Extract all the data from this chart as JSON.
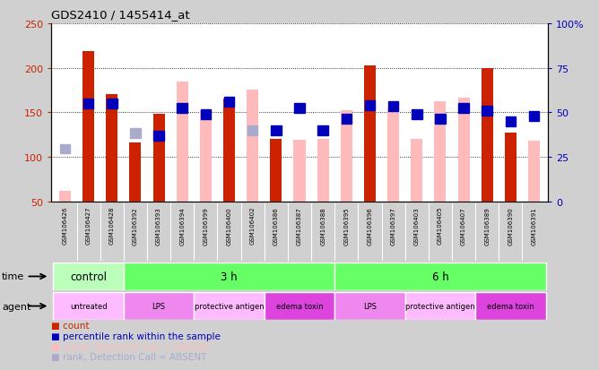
{
  "title": "GDS2410 / 1455414_at",
  "samples": [
    "GSM106426",
    "GSM106427",
    "GSM106428",
    "GSM106392",
    "GSM106393",
    "GSM106394",
    "GSM106399",
    "GSM106400",
    "GSM106402",
    "GSM106386",
    "GSM106387",
    "GSM106388",
    "GSM106395",
    "GSM106396",
    "GSM106397",
    "GSM106403",
    "GSM106405",
    "GSM106407",
    "GSM106389",
    "GSM106390",
    "GSM106391"
  ],
  "count_values": [
    62,
    219,
    170,
    116,
    148,
    184,
    152,
    165,
    175,
    120,
    119,
    120,
    152,
    203,
    152,
    120,
    162,
    166,
    200,
    127,
    118
  ],
  "count_absent": [
    true,
    false,
    false,
    false,
    false,
    true,
    true,
    false,
    true,
    false,
    true,
    true,
    true,
    false,
    true,
    true,
    true,
    true,
    false,
    false,
    true
  ],
  "rank_values": [
    109,
    160,
    160,
    127,
    124,
    155,
    148,
    162,
    130,
    130,
    155,
    130,
    143,
    158,
    157,
    148,
    143,
    155,
    152,
    140,
    146
  ],
  "rank_absent": [
    true,
    false,
    false,
    true,
    false,
    false,
    false,
    false,
    true,
    false,
    false,
    false,
    false,
    false,
    false,
    false,
    false,
    false,
    false,
    false,
    false
  ],
  "ylim_left": [
    50,
    250
  ],
  "ylim_right": [
    0,
    100
  ],
  "yticks_left": [
    50,
    100,
    150,
    200,
    250
  ],
  "yticks_right": [
    0,
    25,
    50,
    75,
    100
  ],
  "bar_color_present": "#cc2200",
  "bar_color_absent": "#ffbbbb",
  "rank_color_present": "#0000bb",
  "rank_color_absent": "#aaaacc",
  "bg_color": "#d0d0d0",
  "plot_bg": "#ffffff",
  "xticklabel_bg": "#c8c8c8",
  "time_spans": [
    {
      "start": 0,
      "end": 3,
      "label": "control",
      "color": "#bbffbb"
    },
    {
      "start": 3,
      "end": 12,
      "label": "3 h",
      "color": "#66ff66"
    },
    {
      "start": 12,
      "end": 21,
      "label": "6 h",
      "color": "#66ff66"
    }
  ],
  "agent_spans": [
    {
      "start": 0,
      "end": 3,
      "label": "untreated",
      "color": "#ffbbff"
    },
    {
      "start": 3,
      "end": 6,
      "label": "LPS",
      "color": "#ee88ee"
    },
    {
      "start": 6,
      "end": 9,
      "label": "protective antigen",
      "color": "#ffbbff"
    },
    {
      "start": 9,
      "end": 12,
      "label": "edema toxin",
      "color": "#dd44dd"
    },
    {
      "start": 12,
      "end": 15,
      "label": "LPS",
      "color": "#ee88ee"
    },
    {
      "start": 15,
      "end": 18,
      "label": "protective antigen",
      "color": "#ffbbff"
    },
    {
      "start": 18,
      "end": 21,
      "label": "edema toxin",
      "color": "#dd44dd"
    }
  ]
}
